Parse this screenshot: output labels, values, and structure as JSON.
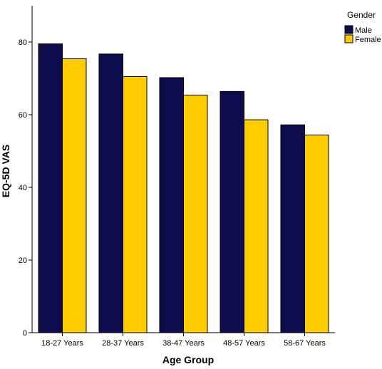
{
  "chart_data": {
    "type": "bar",
    "categories": [
      "18-27 Years",
      "28-37 Years",
      "38-47 Years",
      "48-57 Years",
      "58-67 Years"
    ],
    "series": [
      {
        "name": "Male",
        "values": [
          79.5,
          76.7,
          70.2,
          66.4,
          57.2
        ],
        "color": "#0d0d4d"
      },
      {
        "name": "Female",
        "values": [
          75.4,
          70.5,
          65.4,
          58.6,
          54.4
        ],
        "color": "#ffcc00"
      }
    ],
    "xlabel": "Age Group",
    "ylabel": "EQ-5D VAS",
    "ylim": [
      0,
      90
    ],
    "yticks": [
      "0",
      "20",
      "40",
      "60",
      "80"
    ],
    "legend_title": "Gender",
    "legend_position": "top-right",
    "grid": false
  }
}
